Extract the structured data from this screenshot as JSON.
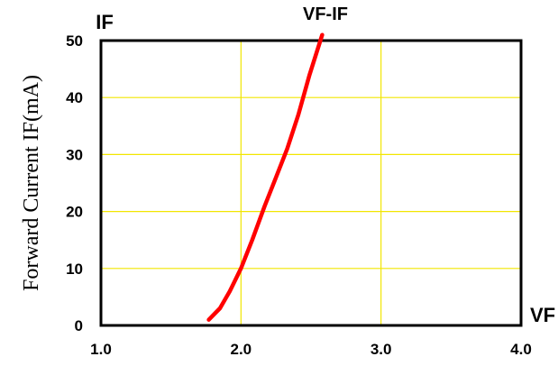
{
  "chart_data": {
    "type": "line",
    "title": "VF-IF",
    "xlabel_short": "VF",
    "ylabel_short": "IF",
    "ylabel": "Forward Current IF(mA)",
    "xlim": [
      1.0,
      4.0
    ],
    "ylim": [
      0,
      50
    ],
    "x_ticks": [
      "1.0",
      "2.0",
      "3.0",
      "4.0"
    ],
    "y_ticks": [
      "0",
      "10",
      "20",
      "30",
      "40",
      "50"
    ],
    "grid": true,
    "grid_color": "#f2e600",
    "series": [
      {
        "color": "#ff0000",
        "x": [
          1.77,
          1.85,
          1.92,
          2.0,
          2.08,
          2.17,
          2.25,
          2.33,
          2.41,
          2.49,
          2.58
        ],
        "y": [
          1,
          3,
          6,
          10,
          15,
          21,
          26,
          31,
          37,
          44,
          51
        ]
      }
    ]
  }
}
